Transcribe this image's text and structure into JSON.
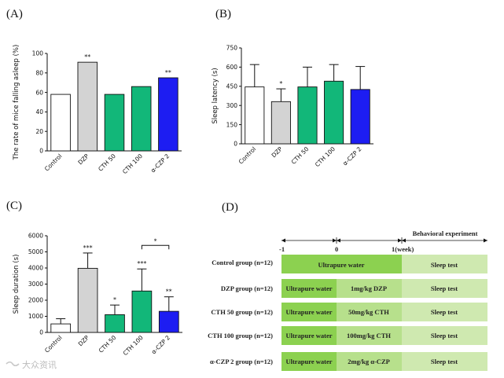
{
  "colors": {
    "control": "#ffffff",
    "dzp": "#d3d3d3",
    "cth": "#12b779",
    "czp": "#1d1df2",
    "axis": "#111111",
    "tl_dark": "#8cd150",
    "tl_mid": "#b7e08c",
    "tl_light": "#cfe9b0"
  },
  "chart_data": [
    {
      "id": "A",
      "panel_label": "(A)",
      "type": "bar",
      "title": "",
      "xlabel": "",
      "ylabel": "The rate of mice falling asleep (%)",
      "ylim": [
        0,
        100
      ],
      "ticks": [
        0,
        20,
        40,
        60,
        80,
        100
      ],
      "categories": [
        "Control",
        "DZP",
        "CTH 50",
        "CTH 100",
        "α-CZP 2"
      ],
      "values": [
        58,
        91,
        58,
        66,
        75
      ],
      "errors": null,
      "significance": [
        "",
        "**",
        "",
        "",
        "**"
      ],
      "bar_colors": [
        "control",
        "dzp",
        "cth",
        "cth",
        "czp"
      ]
    },
    {
      "id": "B",
      "panel_label": "(B)",
      "type": "bar",
      "title": "",
      "xlabel": "",
      "ylabel": "Sleep latency (s)",
      "ylim": [
        0,
        750
      ],
      "ticks": [
        0,
        150,
        300,
        450,
        600,
        750
      ],
      "categories": [
        "Control",
        "DZP",
        "CTH 50",
        "CTH 100",
        "α-CZP 2"
      ],
      "values": [
        445,
        330,
        445,
        490,
        425
      ],
      "errors": [
        175,
        100,
        155,
        130,
        180
      ],
      "significance": [
        "",
        "*",
        "",
        "",
        ""
      ],
      "bar_colors": [
        "control",
        "dzp",
        "cth",
        "cth",
        "czp"
      ]
    },
    {
      "id": "C",
      "panel_label": "(C)",
      "type": "bar",
      "title": "",
      "xlabel": "",
      "ylabel": "Sleep duration (s)",
      "ylim": [
        0,
        6000
      ],
      "ticks": [
        0,
        1000,
        2000,
        3000,
        4000,
        5000,
        6000
      ],
      "categories": [
        "Control",
        "DZP",
        "CTH 50",
        "CTH 100",
        "α-CZP 2"
      ],
      "values": [
        530,
        3980,
        1100,
        2570,
        1310
      ],
      "errors": [
        320,
        950,
        600,
        1370,
        900
      ],
      "significance": [
        "",
        "***",
        "*",
        "***",
        "**"
      ],
      "bracket": {
        "from": 3,
        "to": 4,
        "label": "*"
      },
      "bar_colors": [
        "control",
        "dzp",
        "cth",
        "cth",
        "czp"
      ]
    }
  ],
  "timeline": {
    "panel_label": "(D)",
    "axis_labels": [
      "-1",
      "0",
      "1(week)"
    ],
    "behavioral_label": "Behavioral experiment",
    "rows": [
      {
        "group": "Control group (n=12)",
        "cells": [
          "Ultrapure water",
          "Sleep test"
        ]
      },
      {
        "group": "DZP group (n=12)",
        "cells": [
          "Ultrapure water",
          "1mg/kg DZP",
          "Sleep test"
        ]
      },
      {
        "group": "CTH 50 group (n=12)",
        "cells": [
          "Ultrapure water",
          "50mg/kg CTH",
          "Sleep test"
        ]
      },
      {
        "group": "CTH 100 group (n=12)",
        "cells": [
          "Ultrapure water",
          "100mg/kg CTH",
          "Sleep test"
        ]
      },
      {
        "group": "α-CZP 2 group (n=12)",
        "cells": [
          "Ultrapure water",
          "2mg/kg α-CZP",
          "Sleep test"
        ]
      }
    ]
  },
  "watermark": "大众资讯"
}
